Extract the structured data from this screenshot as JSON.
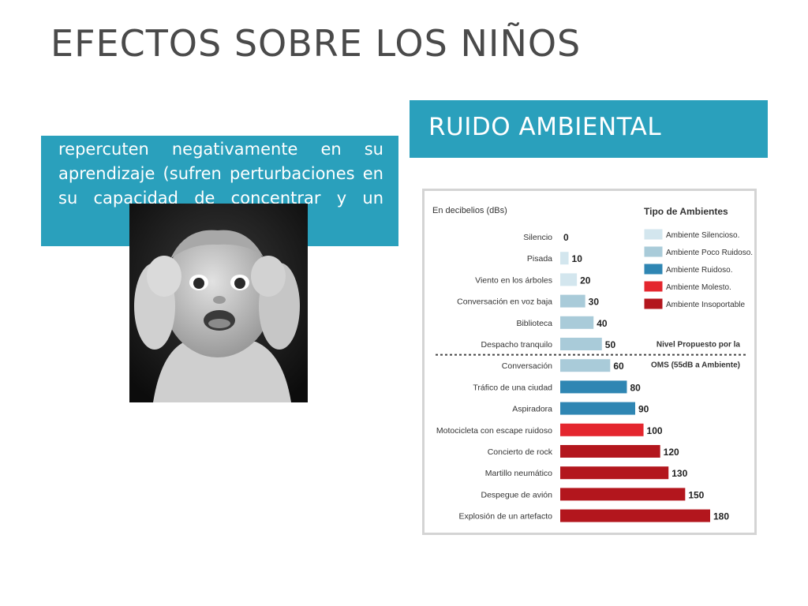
{
  "slide": {
    "title": "EFECTOS SOBRE LOS NIÑOS",
    "header": "RUIDO AMBIENTAL",
    "body_text": "repercuten negativamente en su aprendizaje (sufren perturbaciones en su capacidad de concentrar y un"
  },
  "colors": {
    "accent": "#2aa0bc",
    "silencioso": "#d3e6ee",
    "poco_ruidoso": "#a9cbd9",
    "ruidoso": "#2f86b3",
    "molesto": "#e4262e",
    "insoportable": "#b3161d"
  },
  "chart_data": {
    "type": "bar",
    "orientation": "horizontal",
    "ylabel": "En decibelios (dBs)",
    "categories": [
      "Silencio",
      "Pisada",
      "Viento en los árboles",
      "Conversación en voz baja",
      "Biblioteca",
      "Despacho tranquilo",
      "Conversación",
      "Tráfico de una ciudad",
      "Aspiradora",
      "Motocicleta con escape ruidoso",
      "Concierto de rock",
      "Martillo neumático",
      "Despegue de avión",
      "Explosión de un artefacto"
    ],
    "values": [
      0,
      10,
      20,
      30,
      40,
      50,
      60,
      80,
      90,
      100,
      120,
      130,
      150,
      180
    ],
    "value_labels": [
      "0",
      "10",
      "20",
      "30",
      "40",
      "50",
      "60",
      "80",
      "90",
      "100",
      "120",
      "130",
      "150",
      "180"
    ],
    "types": [
      "silencioso",
      "silencioso",
      "silencioso",
      "poco_ruidoso",
      "poco_ruidoso",
      "poco_ruidoso",
      "poco_ruidoso",
      "ruidoso",
      "ruidoso",
      "molesto",
      "insoportable",
      "insoportable",
      "insoportable",
      "insoportable"
    ],
    "legend": {
      "title": "Tipo de Ambientes",
      "entries": [
        {
          "key": "silencioso",
          "label": "Ambiente Silencioso."
        },
        {
          "key": "poco_ruidoso",
          "label": "Ambiente Poco Ruidoso."
        },
        {
          "key": "ruidoso",
          "label": "Ambiente Ruidoso."
        },
        {
          "key": "molesto",
          "label": "Ambiente Molesto."
        },
        {
          "key": "insoportable",
          "label": "Ambiente Insoportable"
        }
      ],
      "placement": "top-right"
    },
    "threshold": {
      "value": 55,
      "label_lines": [
        "Nivel Propuesto por la",
        "OMS (55dB a Ambiente)"
      ],
      "style": "dashed"
    },
    "xlim": [
      0,
      180
    ],
    "grid": false
  }
}
